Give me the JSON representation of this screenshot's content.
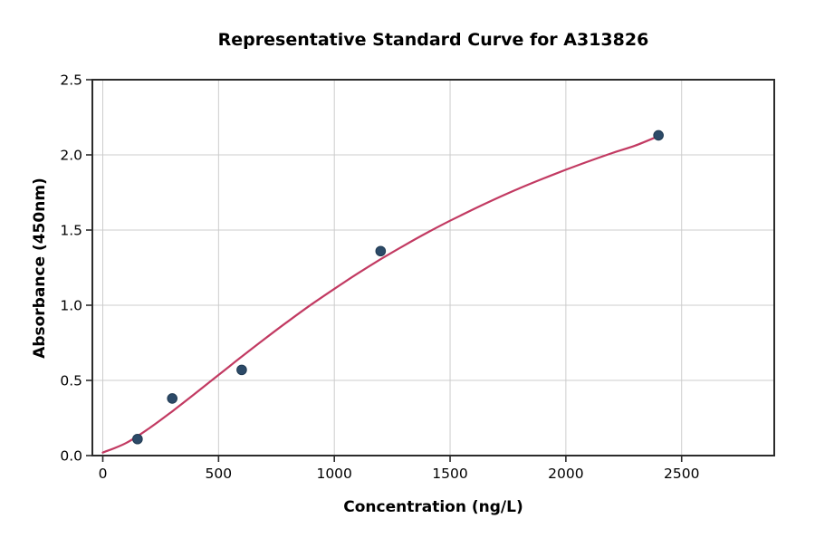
{
  "chart_data": {
    "type": "scatter",
    "title": "Representative Standard Curve for A313826",
    "xlabel": "Concentration (ng/L)",
    "ylabel": "Absorbance (450nm)",
    "xlim": [
      -45,
      2900
    ],
    "ylim": [
      0,
      2.5
    ],
    "x_ticks": [
      0,
      500,
      1000,
      1500,
      2000,
      2500
    ],
    "x_tick_labels": [
      "0",
      "500",
      "1000",
      "1500",
      "2000",
      "2500"
    ],
    "y_ticks": [
      0,
      0.5,
      1,
      1.5,
      2,
      2.5
    ],
    "y_tick_labels": [
      "0.0",
      "0.5",
      "1.0",
      "1.5",
      "2.0",
      "2.5"
    ],
    "grid": true,
    "legend": "none",
    "points": {
      "x": [
        150,
        300,
        600,
        1200,
        2400
      ],
      "y": [
        0.11,
        0.38,
        0.57,
        1.36,
        2.13
      ]
    },
    "fit_curve": {
      "x": [
        0,
        100,
        200,
        300,
        400,
        500,
        600,
        700,
        800,
        900,
        1000,
        1100,
        1200,
        1300,
        1400,
        1500,
        1600,
        1700,
        1800,
        1900,
        2000,
        2100,
        2200,
        2300,
        2400
      ],
      "y": [
        0.02,
        0.083,
        0.181,
        0.294,
        0.414,
        0.536,
        0.658,
        0.777,
        0.893,
        1.004,
        1.109,
        1.21,
        1.306,
        1.396,
        1.482,
        1.562,
        1.638,
        1.71,
        1.778,
        1.841,
        1.901,
        1.958,
        2.012,
        2.062,
        2.125
      ]
    },
    "colors": {
      "curve": "#c23a62",
      "point_fill": "#2c4a68",
      "point_edge": "#203a52",
      "grid": "#cccccc",
      "axis": "#2b2b2b",
      "text": "#000000"
    }
  }
}
